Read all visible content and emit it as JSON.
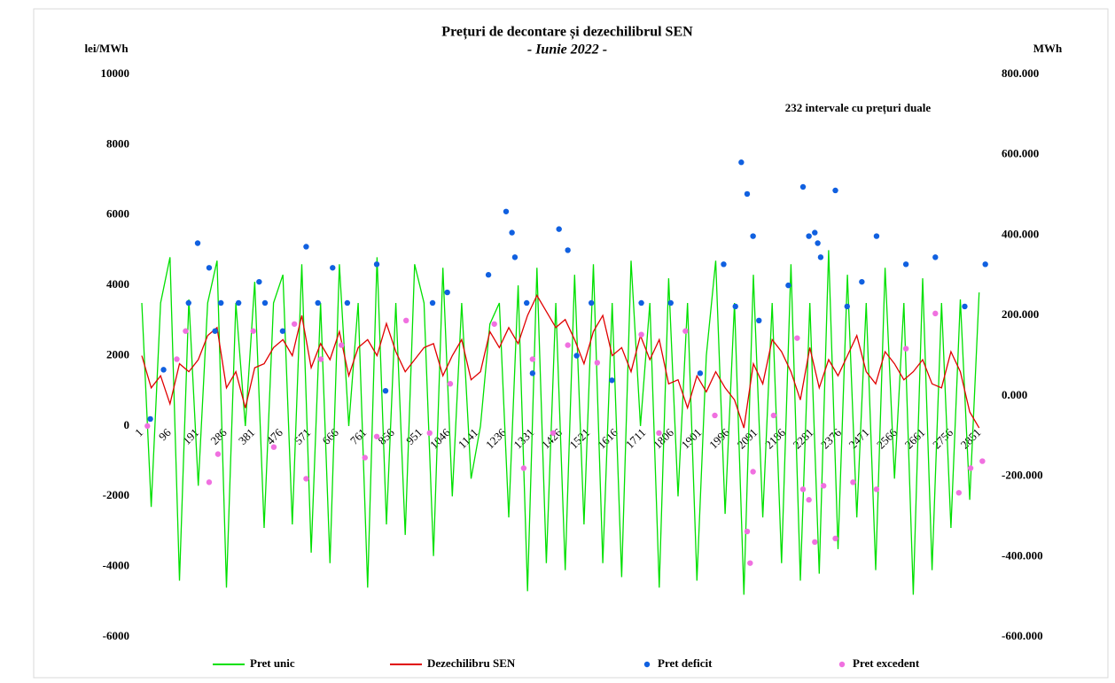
{
  "chart_data": {
    "type": "line",
    "title": "Prețuri de decontare și dezechilibrul SEN",
    "subtitle": "- Iunie 2022 -",
    "y_label": "lei/MWh",
    "y2_label": "MWh",
    "annotation": "232 intervale cu prețuri duale",
    "xlim": [
      1,
      2880
    ],
    "xticks": [
      1,
      96,
      191,
      286,
      381,
      476,
      571,
      666,
      761,
      856,
      951,
      1046,
      1141,
      1236,
      1331,
      1426,
      1521,
      1616,
      1711,
      1806,
      1901,
      1996,
      2091,
      2186,
      2281,
      2376,
      2471,
      2566,
      2661,
      2756,
      2851
    ],
    "ylim": [
      -6000,
      10000
    ],
    "yticks": [
      -6000,
      -4000,
      -2000,
      0,
      2000,
      4000,
      6000,
      8000,
      10000
    ],
    "y2lim": [
      -600,
      800
    ],
    "y2ticks": [
      {
        "value": -600,
        "label": "-600.000"
      },
      {
        "value": -400,
        "label": "-400.000"
      },
      {
        "value": -200,
        "label": "-200.000"
      },
      {
        "value": 0,
        "label": "0.000"
      },
      {
        "value": 200,
        "label": "200.000"
      },
      {
        "value": 400,
        "label": "400.000"
      },
      {
        "value": 600,
        "label": "600.000"
      },
      {
        "value": 800,
        "label": "800.000"
      }
    ],
    "legend": "bottom",
    "x": [
      1,
      33,
      65,
      97,
      129,
      161,
      193,
      225,
      257,
      289,
      321,
      353,
      385,
      417,
      449,
      481,
      513,
      545,
      577,
      609,
      641,
      673,
      705,
      737,
      769,
      801,
      833,
      865,
      897,
      929,
      961,
      993,
      1025,
      1057,
      1089,
      1121,
      1153,
      1185,
      1217,
      1249,
      1281,
      1313,
      1345,
      1377,
      1409,
      1441,
      1473,
      1505,
      1537,
      1569,
      1601,
      1633,
      1665,
      1697,
      1729,
      1761,
      1793,
      1825,
      1857,
      1889,
      1921,
      1953,
      1985,
      2017,
      2049,
      2081,
      2113,
      2145,
      2177,
      2209,
      2241,
      2273,
      2305,
      2337,
      2369,
      2401,
      2433,
      2465,
      2497,
      2529,
      2561,
      2593,
      2625,
      2657,
      2689,
      2721,
      2753,
      2785,
      2817,
      2849
    ],
    "series": [
      {
        "name": "Pret unic",
        "type": "line",
        "color": "#00e000",
        "values": [
          3500,
          -2300,
          3500,
          4800,
          -4400,
          3600,
          -1700,
          3500,
          4700,
          -4600,
          3500,
          0,
          4100,
          -2900,
          3500,
          4300,
          -2800,
          4600,
          -3600,
          3500,
          -3900,
          4600,
          0,
          3500,
          -4600,
          4800,
          -2800,
          3500,
          -3100,
          4600,
          3500,
          -3700,
          4500,
          -2000,
          3500,
          -1500,
          0,
          2900,
          3500,
          -2600,
          4000,
          -4700,
          4500,
          -3900,
          3500,
          -4100,
          4300,
          -2800,
          4600,
          -3900,
          3500,
          -4300,
          4700,
          0,
          3500,
          -4600,
          4200,
          -2000,
          3500,
          -4400,
          2000,
          4700,
          -2500,
          3500,
          -4800,
          4300,
          -2600,
          3500,
          -3900,
          4600,
          -4400,
          3500,
          -4200,
          5000,
          -3500,
          4300,
          -2600,
          3500,
          -4100,
          4500,
          -1500,
          3500,
          -4800,
          4200,
          -4100,
          3500,
          -2900,
          3600,
          -2100,
          3800
        ]
      },
      {
        "name": "Dezechilibru SEN",
        "type": "line",
        "axis": "y2",
        "color": "#e00000",
        "values": [
          100,
          20,
          50,
          -20,
          80,
          60,
          90,
          150,
          170,
          20,
          60,
          -30,
          70,
          80,
          120,
          140,
          100,
          200,
          70,
          130,
          90,
          160,
          50,
          120,
          140,
          100,
          180,
          110,
          60,
          90,
          120,
          130,
          50,
          100,
          140,
          40,
          60,
          160,
          120,
          170,
          130,
          200,
          250,
          210,
          170,
          190,
          140,
          80,
          160,
          200,
          100,
          120,
          60,
          150,
          90,
          140,
          30,
          40,
          -30,
          50,
          10,
          60,
          20,
          -10,
          -80,
          80,
          30,
          140,
          110,
          60,
          -10,
          120,
          20,
          90,
          50,
          100,
          150,
          60,
          30,
          110,
          80,
          40,
          60,
          90,
          30,
          20,
          110,
          60,
          -40,
          -80
        ]
      },
      {
        "name": "Pret deficit",
        "type": "scatter",
        "color": "#1060e0",
        "x": [
          30,
          75,
          160,
          191,
          230,
          250,
          270,
          330,
          400,
          420,
          480,
          560,
          600,
          650,
          700,
          800,
          830,
          990,
          1040,
          1180,
          1240,
          1260,
          1270,
          1310,
          1330,
          1420,
          1450,
          1480,
          1530,
          1600,
          1700,
          1800,
          1900,
          1980,
          2020,
          2040,
          2060,
          2080,
          2100,
          2200,
          2250,
          2270,
          2290,
          2300,
          2310,
          2360,
          2400,
          2450,
          2500,
          2600,
          2700,
          2800,
          2870
        ],
        "values": [
          200,
          1600,
          3500,
          5200,
          4500,
          2700,
          3500,
          3500,
          4100,
          3500,
          2700,
          5100,
          3500,
          4500,
          3500,
          4600,
          1000,
          3500,
          3800,
          4300,
          6100,
          5500,
          4800,
          3500,
          1500,
          5600,
          5000,
          2000,
          3500,
          1300,
          3500,
          3500,
          1500,
          4600,
          3400,
          7500,
          6600,
          5400,
          3000,
          4000,
          6800,
          5400,
          5500,
          5200,
          4800,
          6700,
          3400,
          4100,
          5400,
          4600,
          4800,
          3400,
          4600
        ]
      },
      {
        "name": "Pret excedent",
        "type": "scatter",
        "color": "#f070e0",
        "x": [
          20,
          120,
          150,
          230,
          260,
          380,
          450,
          520,
          560,
          610,
          680,
          760,
          800,
          900,
          980,
          1050,
          1200,
          1300,
          1330,
          1400,
          1450,
          1550,
          1700,
          1760,
          1850,
          1950,
          2060,
          2070,
          2080,
          2150,
          2230,
          2250,
          2270,
          2290,
          2320,
          2360,
          2420,
          2500,
          2600,
          2700,
          2780,
          2820,
          2860
        ],
        "values": [
          0,
          1900,
          2700,
          -1600,
          -800,
          2700,
          -600,
          2900,
          -1500,
          1900,
          2300,
          -900,
          -300,
          3000,
          -200,
          1200,
          2900,
          -1200,
          1900,
          -200,
          2300,
          1800,
          2600,
          -200,
          2700,
          300,
          -3000,
          -3900,
          -1300,
          300,
          2500,
          -1800,
          -2100,
          -3300,
          -1700,
          -3200,
          -1600,
          -1800,
          2200,
          3200,
          -1900,
          -1200,
          -1000
        ]
      }
    ]
  }
}
